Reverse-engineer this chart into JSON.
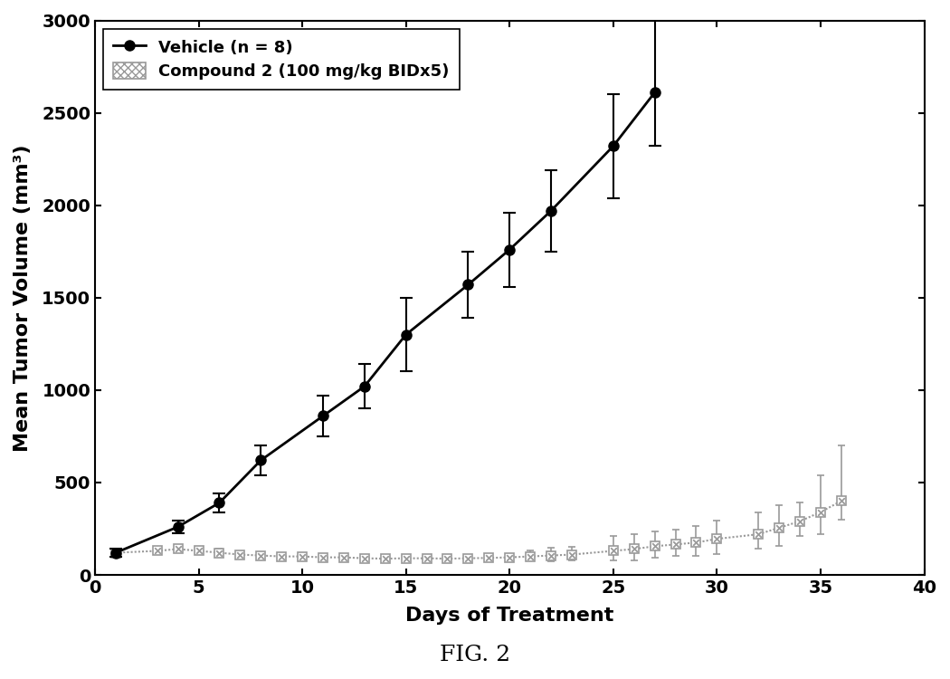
{
  "vehicle_x": [
    1,
    4,
    6,
    8,
    11,
    13,
    15,
    18,
    20,
    22,
    25,
    27
  ],
  "vehicle_y": [
    120,
    260,
    390,
    620,
    860,
    1020,
    1300,
    1570,
    1760,
    1970,
    2320,
    2610
  ],
  "vehicle_yerr_lo": [
    20,
    35,
    50,
    80,
    110,
    120,
    200,
    180,
    200,
    220,
    280,
    290
  ],
  "vehicle_yerr_hi": [
    20,
    35,
    50,
    80,
    110,
    120,
    200,
    180,
    200,
    220,
    280,
    400
  ],
  "compound_x": [
    1,
    3,
    4,
    5,
    6,
    7,
    8,
    9,
    10,
    11,
    12,
    13,
    14,
    15,
    16,
    17,
    18,
    19,
    20,
    21,
    22,
    23,
    25,
    26,
    27,
    28,
    29,
    30,
    32,
    33,
    34,
    35,
    36
  ],
  "compound_y": [
    120,
    130,
    140,
    130,
    120,
    110,
    105,
    100,
    100,
    95,
    95,
    90,
    88,
    90,
    90,
    88,
    90,
    92,
    95,
    100,
    105,
    110,
    130,
    140,
    155,
    165,
    175,
    195,
    220,
    255,
    290,
    340,
    400
  ],
  "compound_yerr_lo": [
    15,
    15,
    15,
    15,
    20,
    15,
    15,
    15,
    15,
    15,
    15,
    15,
    15,
    15,
    15,
    15,
    20,
    20,
    20,
    20,
    30,
    30,
    50,
    60,
    60,
    60,
    70,
    80,
    80,
    100,
    80,
    120,
    100
  ],
  "compound_yerr_hi": [
    15,
    15,
    15,
    15,
    20,
    15,
    15,
    15,
    15,
    15,
    15,
    15,
    15,
    15,
    15,
    15,
    20,
    20,
    20,
    30,
    40,
    40,
    80,
    80,
    80,
    80,
    90,
    100,
    120,
    120,
    100,
    200,
    300
  ],
  "xlabel": "Days of Treatment",
  "ylabel": "Mean Tumor Volume (mm³)",
  "xlim": [
    0,
    40
  ],
  "ylim": [
    0,
    3000
  ],
  "yticks": [
    0,
    500,
    1000,
    1500,
    2000,
    2500,
    3000
  ],
  "xticks": [
    0,
    5,
    10,
    15,
    20,
    25,
    30,
    35,
    40
  ],
  "legend_vehicle": "Vehicle (n = 8)",
  "legend_compound": "Compound 2 (100 mg/kg BIDx5)",
  "fig_label": "FIG. 2",
  "background_color": "#ffffff",
  "vehicle_color": "#000000",
  "compound_color": "#999999"
}
